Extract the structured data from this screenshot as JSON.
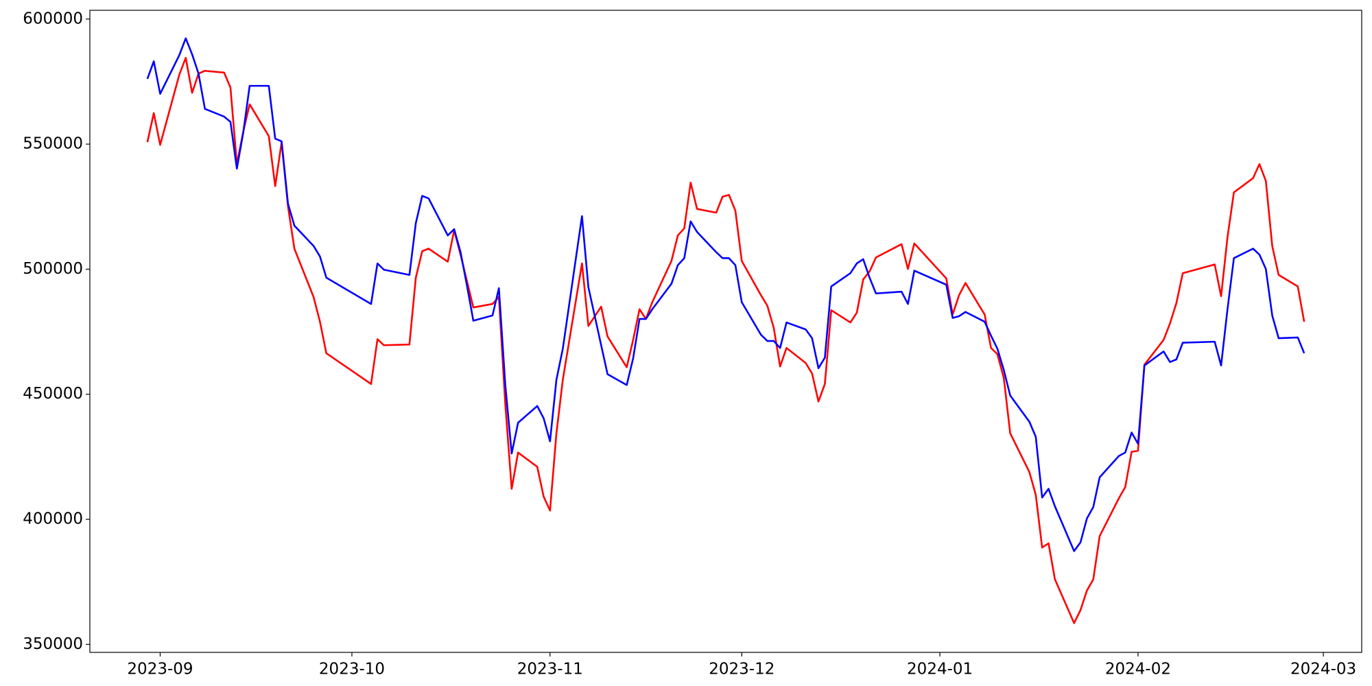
{
  "chart_data": {
    "type": "line",
    "x": [
      19599,
      19600,
      19601,
      19604,
      19605,
      19606,
      19607,
      19608,
      19611,
      19612,
      19613,
      19614,
      19615,
      19618,
      19619,
      19620,
      19621,
      19622,
      19625,
      19626,
      19627,
      19634,
      19635,
      19636,
      19640,
      19641,
      19642,
      19643,
      19646,
      19647,
      19648,
      19649,
      19650,
      19653,
      19654,
      19655,
      19656,
      19657,
      19660,
      19661,
      19662,
      19663,
      19664,
      19667,
      19668,
      19670,
      19671,
      19674,
      19675,
      19676,
      19677,
      19678,
      19681,
      19682,
      19683,
      19684,
      19685,
      19688,
      19689,
      19690,
      19691,
      19692,
      19695,
      19696,
      19697,
      19698,
      19699,
      19702,
      19703,
      19704,
      19705,
      19706,
      19709,
      19710,
      19711,
      19712,
      19713,
      19717,
      19718,
      19719,
      19724,
      19725,
      19726,
      19727,
      19730,
      19731,
      19732,
      19733,
      19734,
      19737,
      19738,
      19739,
      19740,
      19741,
      19744,
      19745,
      19746,
      19747,
      19748,
      19751,
      19752,
      19753,
      19754,
      19755,
      19758,
      19759,
      19760,
      19761,
      19766,
      19767,
      19768,
      19769,
      19772,
      19773,
      19774,
      19775,
      19776,
      19779,
      19780
    ],
    "series": [
      {
        "color": "#ff0000",
        "values": [
          550800,
          562400,
          549700,
          577800,
          584500,
          570500,
          578200,
          579300,
          578600,
          572600,
          542000,
          555000,
          565900,
          553200,
          533200,
          550800,
          525100,
          508200,
          488900,
          479000,
          466400,
          454100,
          472000,
          469600,
          469900,
          496600,
          507200,
          508200,
          503000,
          515600,
          505800,
          495200,
          484700,
          486100,
          488900,
          446000,
          412200,
          426700,
          421000,
          409100,
          403500,
          434400,
          455800,
          502300,
          477300,
          485000,
          473100,
          460800,
          471700,
          484000,
          480100,
          486800,
          503300,
          513500,
          516300,
          534600,
          524100,
          522600,
          529000,
          529700,
          523400,
          503300,
          489600,
          485400,
          476600,
          461100,
          468500,
          462500,
          458300,
          447100,
          454100,
          483600,
          478700,
          482600,
          495900,
          499100,
          504700,
          510000,
          500100,
          510300,
          496300,
          481900,
          489600,
          494500,
          481900,
          468500,
          466000,
          456500,
          434400,
          418900,
          409800,
          388700,
          390400,
          376000,
          358500,
          363700,
          371500,
          376000,
          393300,
          408400,
          412900,
          427000,
          427400,
          461800,
          471700,
          478300,
          486400,
          498400,
          501900,
          489200,
          512800,
          530700,
          536400,
          542000,
          535300,
          509300,
          497700,
          493100,
          479000
        ]
      },
      {
        "color": "#0000ff",
        "values": [
          576100,
          583100,
          570100,
          585600,
          592300,
          585900,
          578200,
          564100,
          561000,
          558900,
          540200,
          554600,
          573300,
          573300,
          552200,
          551100,
          526200,
          517400,
          509300,
          505100,
          496600,
          486100,
          502300,
          499800,
          497700,
          518400,
          529300,
          528300,
          513500,
          516000,
          506800,
          493500,
          479400,
          481500,
          492400,
          453700,
          426300,
          438600,
          445300,
          440400,
          431200,
          455800,
          468200,
          521200,
          492800,
          469600,
          458000,
          453700,
          464300,
          480100,
          480100,
          484000,
          494200,
          501600,
          504400,
          519100,
          514900,
          506800,
          504400,
          504400,
          501600,
          486800,
          473800,
          471300,
          471300,
          468500,
          478700,
          475900,
          472400,
          460400,
          464600,
          493100,
          498400,
          502300,
          504000,
          496600,
          490300,
          491000,
          486100,
          499400,
          493800,
          480500,
          481200,
          482900,
          479000,
          473400,
          468200,
          459700,
          449500,
          439000,
          433000,
          408700,
          412200,
          405200,
          387300,
          390800,
          400300,
          404900,
          416800,
          425300,
          426700,
          434700,
          430200,
          461500,
          467100,
          462900,
          463900,
          470600,
          471000,
          461500,
          484000,
          504400,
          508200,
          505800,
          500100,
          481500,
          472400,
          472700,
          466400
        ]
      }
    ],
    "xlim": [
      19590,
      19789
    ],
    "xticks": [
      {
        "value": 19601,
        "label": "2023-09"
      },
      {
        "value": 19631,
        "label": "2023-10"
      },
      {
        "value": 19662,
        "label": "2023-11"
      },
      {
        "value": 19692,
        "label": "2023-12"
      },
      {
        "value": 19723,
        "label": "2024-01"
      },
      {
        "value": 19754,
        "label": "2024-02"
      },
      {
        "value": 19783,
        "label": "2024-03"
      }
    ],
    "ylim": [
      346800,
      603500
    ],
    "yticks": [
      350000,
      400000,
      450000,
      500000,
      550000,
      600000
    ]
  }
}
